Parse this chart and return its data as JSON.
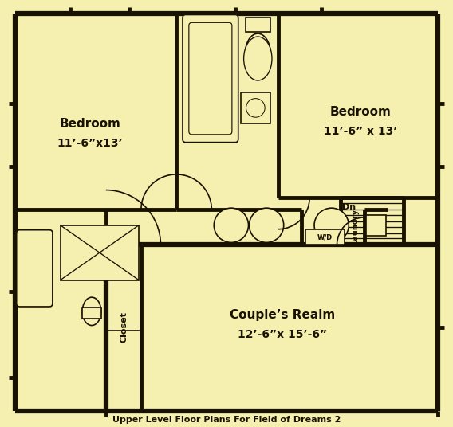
{
  "bg_color": "#f5f0b0",
  "wall_color": "#1a1200",
  "wall_lw": 3.5,
  "thin_lw": 1.2,
  "title": "Upper Level Floor Plans For Field of Dreams 2",
  "rooms": {
    "bedroom_left_label": "Bedroom",
    "bedroom_left_sub": "11’-6”x13’",
    "bedroom_right_label": "Bedroom",
    "bedroom_right_sub": "11’-6” x 13’",
    "couples_label": "Couple’s Realm",
    "couples_sub": "12’-6”x 15’-6”",
    "closet_label": "Closet",
    "laundry_label": "Laundry",
    "wd_label": "W/D",
    "dn_label": "Dn"
  }
}
